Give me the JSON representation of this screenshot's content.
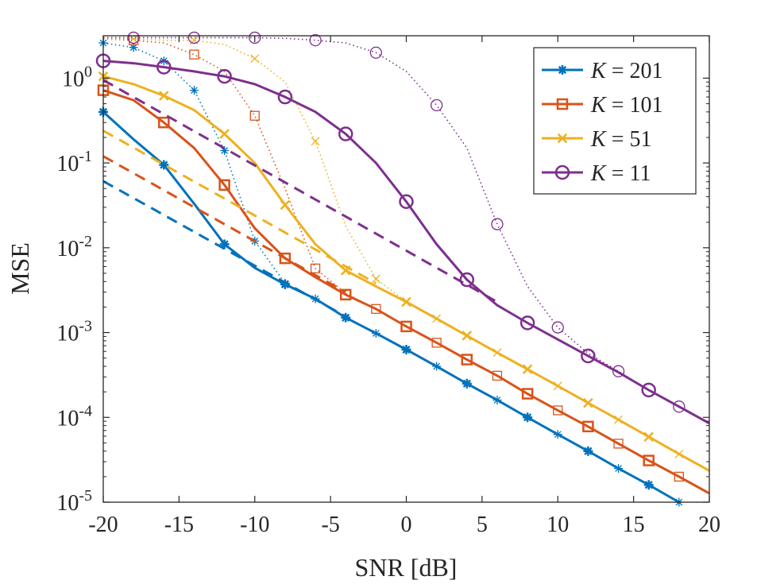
{
  "chart_data": {
    "type": "line",
    "title": "",
    "xlabel": "SNR [dB]",
    "ylabel": "MSE",
    "xlim": [
      -20,
      20
    ],
    "ylim_log10": [
      -5,
      0.5
    ],
    "yscale": "log",
    "grid": false,
    "legend_position": "top-right",
    "x_ticks": [
      -20,
      -15,
      -10,
      -5,
      0,
      5,
      10,
      15,
      20
    ],
    "x_tick_labels": [
      "-20",
      "-15",
      "-10",
      "-5",
      "0",
      "5",
      "10",
      "15",
      "20"
    ],
    "y_ticks": [
      {
        "exp": 0,
        "label": "10",
        "sup": "0"
      },
      {
        "exp": -1,
        "label": "10",
        "sup": "-1"
      },
      {
        "exp": -2,
        "label": "10",
        "sup": "-2"
      },
      {
        "exp": -3,
        "label": "10",
        "sup": "-3"
      },
      {
        "exp": -4,
        "label": "10",
        "sup": "-4"
      },
      {
        "exp": -5,
        "label": "10",
        "sup": "-5"
      }
    ],
    "series": [
      {
        "name": "K = 201",
        "k_label": "K",
        "k_value": "201",
        "color": "#0072BD",
        "marker": "star",
        "solid": {
          "x": [
            -20,
            -18,
            -16,
            -14,
            -12,
            -10,
            -8,
            -6,
            -4,
            -2,
            0,
            2,
            4,
            6,
            8,
            10,
            12,
            14,
            16,
            18
          ],
          "y": [
            0.4,
            0.19,
            0.095,
            0.033,
            0.011,
            0.0058,
            0.0037,
            0.0025,
            0.0015,
            0.00098,
            0.00063,
            0.0004,
            0.00025,
            0.00016,
            0.0001,
            6.3e-05,
            4e-05,
            2.5e-05,
            1.6e-05,
            1e-05
          ]
        },
        "solid_marker_x": [
          -20,
          -16,
          -12,
          -8,
          -4,
          0,
          4,
          8,
          12,
          16
        ],
        "dotted": {
          "x": [
            -20,
            -18,
            -16,
            -14,
            -12,
            -10,
            -8,
            -6,
            -4,
            -2,
            0,
            2,
            4,
            6,
            8,
            10,
            12,
            14,
            16,
            18
          ],
          "y": [
            2.6,
            2.3,
            1.6,
            0.72,
            0.14,
            0.012,
            0.0038,
            0.0025,
            0.0015,
            0.00098,
            0.00063,
            0.0004,
            0.00025,
            0.00016,
            0.0001,
            6.3e-05,
            4e-05,
            2.5e-05,
            1.6e-05,
            1e-05
          ]
        },
        "dotted_marker_x": [
          -20,
          -18,
          -16,
          -14,
          -12,
          -10,
          -8,
          -6,
          -4,
          -2,
          0,
          2,
          4,
          6,
          8,
          10,
          12,
          14,
          16,
          18
        ],
        "dashed": {
          "x": [
            -20,
            -4
          ],
          "y": [
            0.061,
            0.00155
          ]
        }
      },
      {
        "name": "K = 101",
        "k_label": "K",
        "k_value": "101",
        "color": "#D95319",
        "marker": "square",
        "solid": {
          "x": [
            -20,
            -18,
            -16,
            -14,
            -12,
            -10,
            -8,
            -6,
            -4,
            -2,
            0,
            2,
            4,
            6,
            8,
            10,
            12,
            14,
            16,
            18,
            20
          ],
          "y": [
            0.72,
            0.55,
            0.3,
            0.15,
            0.055,
            0.017,
            0.0075,
            0.0045,
            0.0028,
            0.0019,
            0.00118,
            0.00076,
            0.00048,
            0.00031,
            0.00019,
            0.000121,
            7.8e-05,
            4.9e-05,
            3.1e-05,
            2e-05,
            1.27e-05
          ]
        },
        "solid_marker_x": [
          -20,
          -16,
          -12,
          -8,
          -4,
          0,
          4,
          8,
          12,
          16
        ],
        "dotted": {
          "x": [
            -20,
            -18,
            -16,
            -14,
            -12,
            -10,
            -8,
            -6,
            -4,
            -2,
            0,
            2,
            4,
            6,
            8,
            10,
            12,
            14,
            16,
            18,
            20
          ],
          "y": [
            2.9,
            2.8,
            2.6,
            1.9,
            1.2,
            0.36,
            0.05,
            0.0057,
            0.0029,
            0.0019,
            0.00118,
            0.00076,
            0.00048,
            0.00031,
            0.00019,
            0.000121,
            7.8e-05,
            4.9e-05,
            3.1e-05,
            2e-05,
            1.27e-05
          ]
        },
        "dotted_marker_x": [
          -18,
          -14,
          -10,
          -6,
          -2,
          2,
          6,
          10,
          14,
          18
        ],
        "dashed": {
          "x": [
            -20,
            -4
          ],
          "y": [
            0.12,
            0.003
          ]
        }
      },
      {
        "name": "K = 51",
        "k_label": "K",
        "k_value": "51",
        "color": "#EDB120",
        "marker": "x",
        "solid": {
          "x": [
            -20,
            -18,
            -16,
            -14,
            -12,
            -10,
            -8,
            -6,
            -4,
            -2,
            0,
            2,
            4,
            6,
            8,
            10,
            12,
            14,
            16,
            18,
            20
          ],
          "y": [
            1.05,
            0.85,
            0.62,
            0.42,
            0.22,
            0.1,
            0.032,
            0.011,
            0.0054,
            0.0035,
            0.0023,
            0.00146,
            0.00092,
            0.00058,
            0.00037,
            0.000235,
            0.000148,
            9.4e-05,
            5.9e-05,
            3.7e-05,
            2.35e-05
          ]
        },
        "solid_marker_x": [
          -20,
          -16,
          -12,
          -8,
          -4,
          0,
          4,
          8,
          12,
          16
        ],
        "dotted": {
          "x": [
            -20,
            -18,
            -16,
            -14,
            -12,
            -10,
            -8,
            -6,
            -4,
            -2,
            0,
            2,
            4,
            6,
            8,
            10,
            12,
            14,
            16,
            18,
            20
          ],
          "y": [
            2.9,
            2.9,
            2.8,
            2.8,
            2.5,
            1.7,
            0.9,
            0.18,
            0.018,
            0.0043,
            0.0023,
            0.00146,
            0.00092,
            0.00058,
            0.00037,
            0.000235,
            0.000148,
            9.4e-05,
            5.9e-05,
            3.7e-05,
            2.35e-05
          ]
        },
        "dotted_marker_x": [
          -18,
          -14,
          -10,
          -6,
          -2,
          2,
          6,
          10,
          14,
          18
        ],
        "dashed": {
          "x": [
            -20,
            -2
          ],
          "y": [
            0.24,
            0.0038
          ]
        }
      },
      {
        "name": "K = 11",
        "k_label": "K",
        "k_value": "11",
        "color": "#7E2F8E",
        "marker": "circle",
        "solid": {
          "x": [
            -20,
            -18,
            -16,
            -14,
            -12,
            -10,
            -8,
            -6,
            -4,
            -2,
            0,
            2,
            4,
            6,
            8,
            10,
            12,
            14,
            16,
            18,
            20
          ],
          "y": [
            1.6,
            1.5,
            1.35,
            1.2,
            1.05,
            0.85,
            0.6,
            0.4,
            0.22,
            0.1,
            0.035,
            0.011,
            0.0042,
            0.0021,
            0.0013,
            0.00083,
            0.00053,
            0.00034,
            0.00021,
            0.000134,
            8.5e-05
          ]
        },
        "solid_marker_x": [
          -20,
          -16,
          -12,
          -8,
          -4,
          0,
          4,
          8,
          12,
          16
        ],
        "dotted": {
          "x": [
            -20,
            -18,
            -16,
            -14,
            -12,
            -10,
            -8,
            -6,
            -4,
            -2,
            0,
            2,
            4,
            6,
            8,
            10,
            12,
            14,
            16,
            18,
            20
          ],
          "y": [
            3.0,
            3.0,
            3.0,
            3.0,
            3.0,
            3.0,
            2.95,
            2.8,
            2.6,
            2.0,
            1.2,
            0.48,
            0.15,
            0.019,
            0.0035,
            0.00115,
            0.00057,
            0.00035,
            0.00021,
            0.000134,
            8.5e-05
          ]
        },
        "dotted_marker_x": [
          -18,
          -14,
          -10,
          -6,
          -2,
          2,
          6,
          10,
          14,
          18
        ],
        "dashed": {
          "x": [
            -20,
            6
          ],
          "y": [
            0.95,
            0.0023
          ]
        }
      }
    ]
  }
}
